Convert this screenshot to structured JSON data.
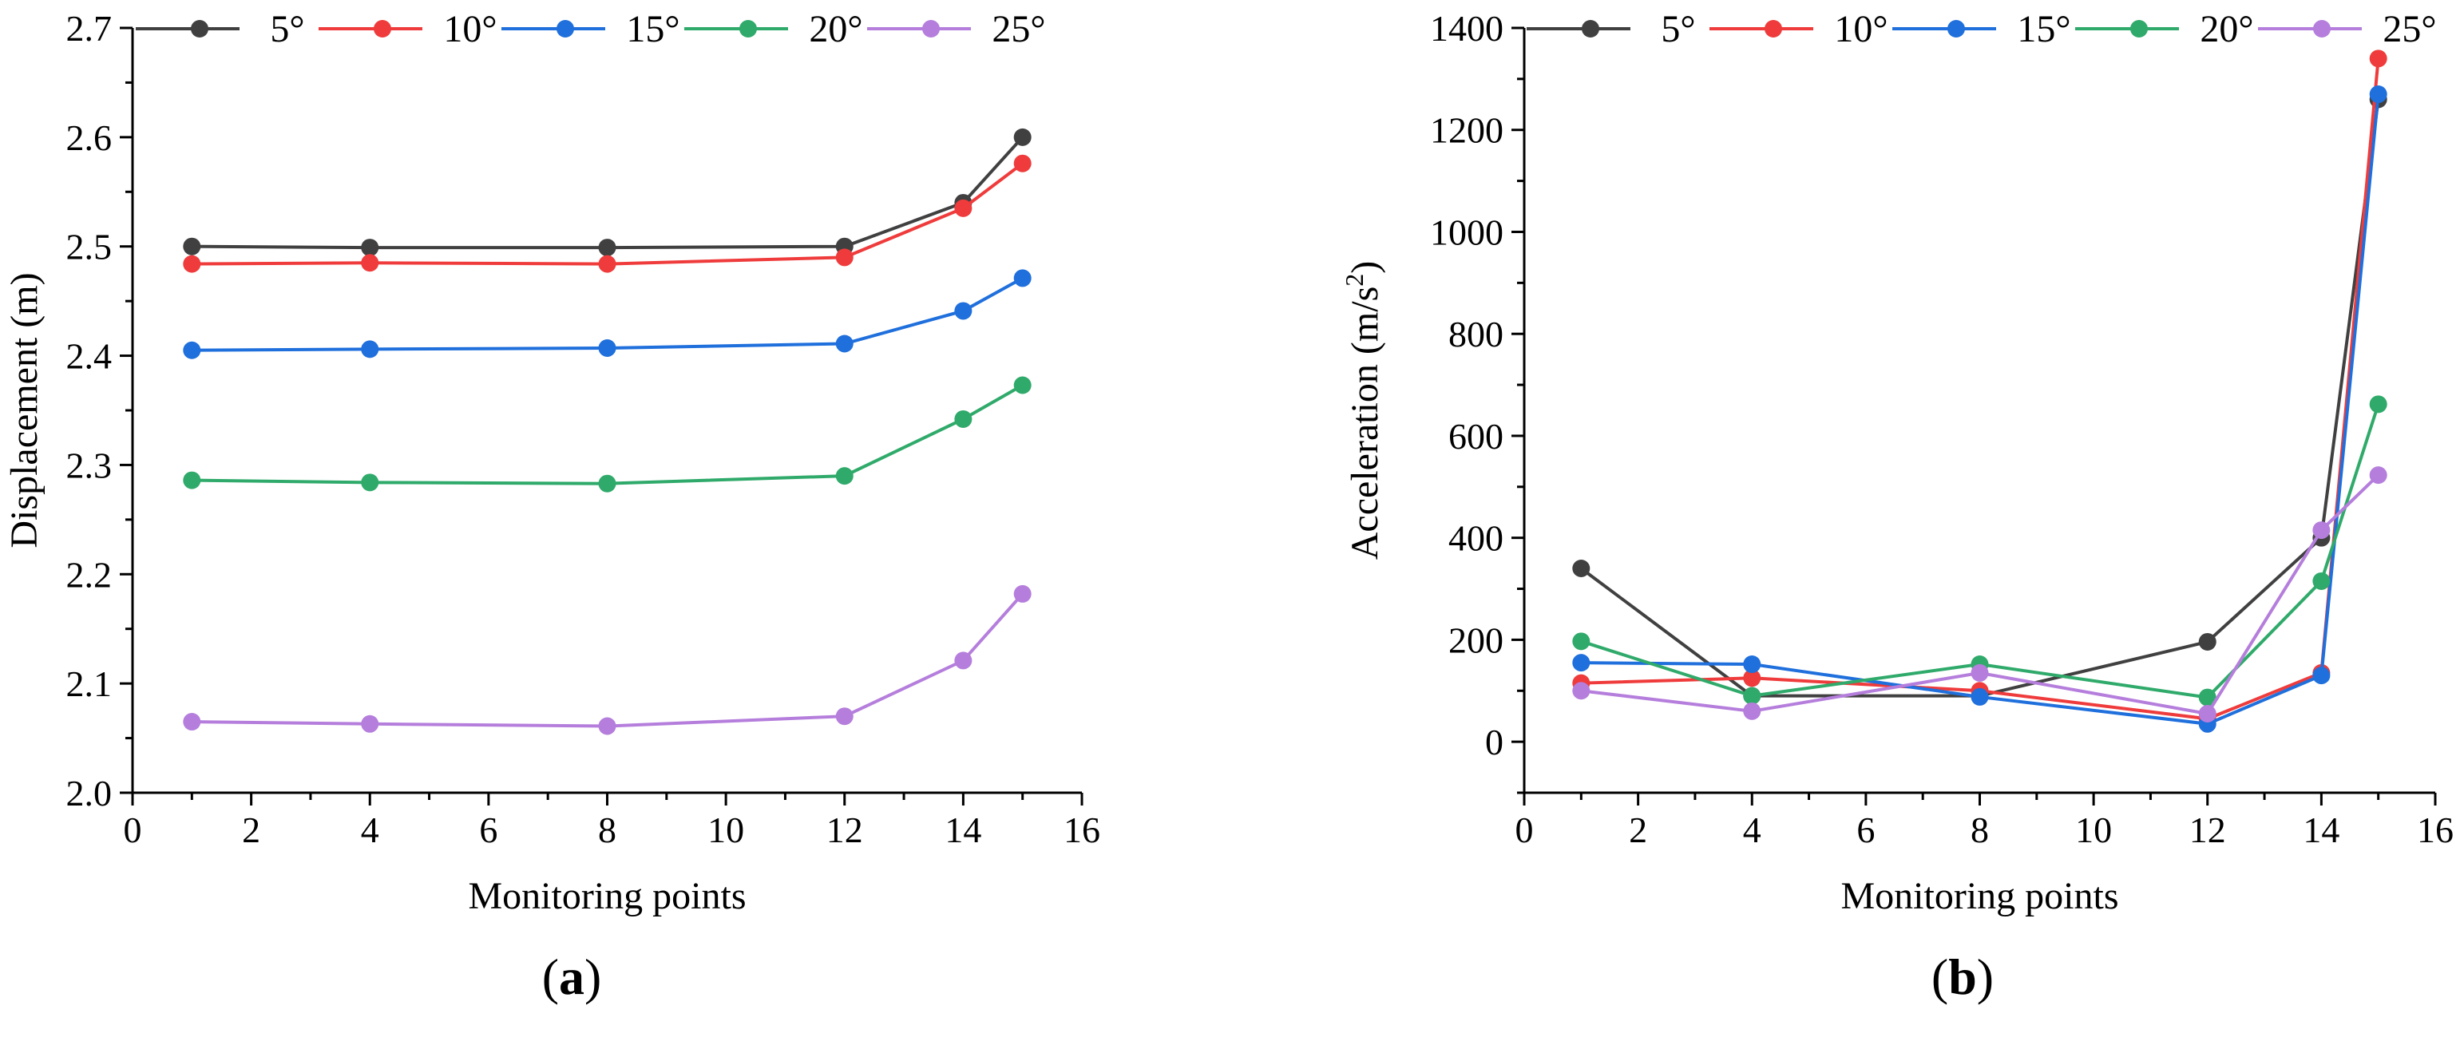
{
  "colors": {
    "5°": "#404040",
    "10°": "#ef3b3b",
    "15°": "#1f6fdc",
    "20°": "#2faa6a",
    "25°": "#b57edc"
  },
  "panels": [
    {
      "label_bold": "a",
      "open": "(",
      "close": ")"
    },
    {
      "label_bold": "b",
      "open": "(",
      "close": ")"
    }
  ],
  "chart_data": [
    {
      "type": "line",
      "xlabel": "Monitoring points",
      "ylabel": "Displacement (m)",
      "xlim": [
        0,
        16
      ],
      "ylim": [
        2.0,
        2.7
      ],
      "xticks": [
        0,
        2,
        4,
        6,
        8,
        10,
        12,
        14,
        16
      ],
      "yticks": [
        2.0,
        2.1,
        2.2,
        2.3,
        2.4,
        2.5,
        2.6,
        2.7
      ],
      "ytick_labels": [
        "2.0",
        "2.1",
        "2.2",
        "2.3",
        "2.4",
        "2.5",
        "2.6",
        "2.7"
      ],
      "legend_position": "top",
      "x": [
        1,
        4,
        8,
        12,
        14,
        15
      ],
      "series": [
        {
          "name": "5°",
          "values": [
            2.5,
            2.499,
            2.499,
            2.5,
            2.54,
            2.6
          ]
        },
        {
          "name": "10°",
          "values": [
            2.484,
            2.485,
            2.484,
            2.49,
            2.535,
            2.576
          ]
        },
        {
          "name": "15°",
          "values": [
            2.405,
            2.406,
            2.407,
            2.411,
            2.441,
            2.471
          ]
        },
        {
          "name": "20°",
          "values": [
            2.286,
            2.284,
            2.283,
            2.29,
            2.342,
            2.373
          ]
        },
        {
          "name": "25°",
          "values": [
            2.065,
            2.063,
            2.061,
            2.07,
            2.121,
            2.182
          ]
        }
      ]
    },
    {
      "type": "line",
      "xlabel": "Monitoring points",
      "ylabel_main": "Acceleration (m/s",
      "ylabel_sup": "2",
      "ylabel_close": ")",
      "xlim": [
        0,
        16
      ],
      "ylim": [
        -100,
        1400
      ],
      "xticks": [
        0,
        2,
        4,
        6,
        8,
        10,
        12,
        14,
        16
      ],
      "yticks": [
        0,
        200,
        400,
        600,
        800,
        1000,
        1200,
        1400
      ],
      "ytick_labels": [
        "0",
        "200",
        "400",
        "600",
        "800",
        "1000",
        "1200",
        "1400"
      ],
      "legend_position": "top",
      "x": [
        1,
        4,
        8,
        12,
        14,
        15
      ],
      "series": [
        {
          "name": "5°",
          "values": [
            340,
            90,
            90,
            196,
            400,
            1260
          ]
        },
        {
          "name": "10°",
          "values": [
            115,
            125,
            100,
            45,
            135,
            1340
          ]
        },
        {
          "name": "15°",
          "values": [
            155,
            152,
            88,
            35,
            130,
            1270
          ]
        },
        {
          "name": "20°",
          "values": [
            197,
            90,
            152,
            87,
            315,
            662
          ]
        },
        {
          "name": "25°",
          "values": [
            100,
            60,
            135,
            55,
            415,
            523
          ]
        }
      ]
    }
  ]
}
